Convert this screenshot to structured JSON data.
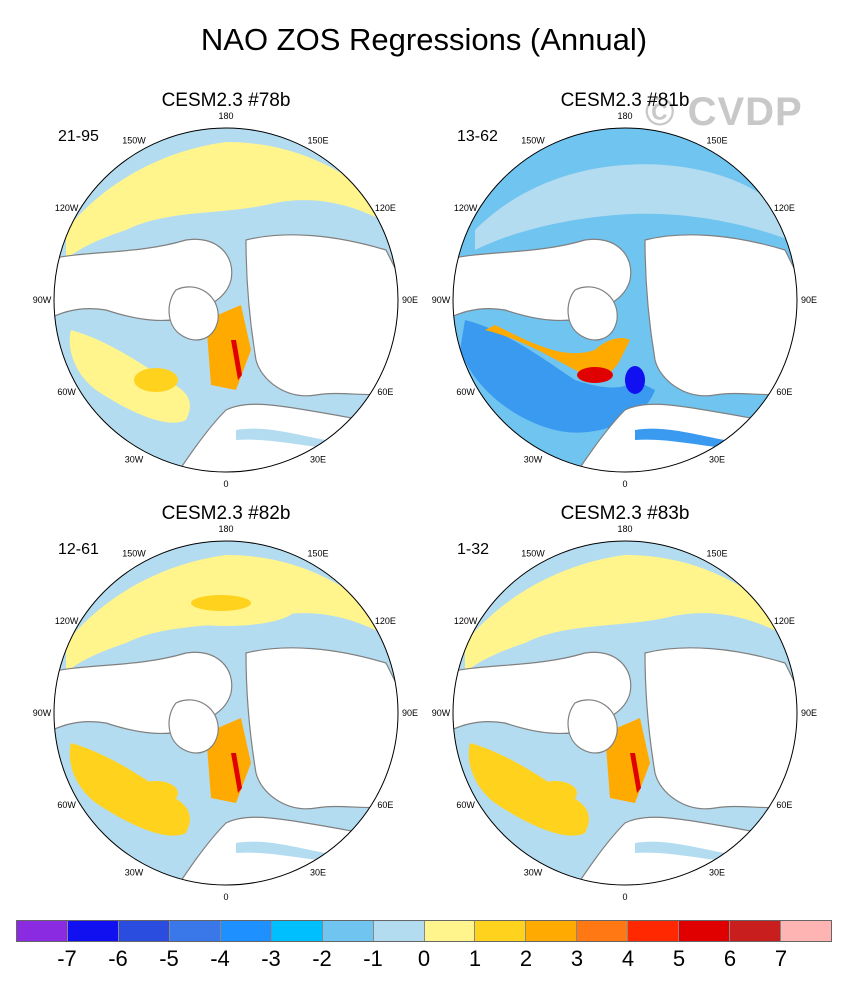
{
  "title": "NAO ZOS Regressions (Annual)",
  "watermark": "© CVDP",
  "panels": [
    {
      "title": "CESM2.3 #78b",
      "years": "21-95",
      "pattern": "weak"
    },
    {
      "title": "CESM2.3 #81b",
      "years": "13-62",
      "pattern": "strong"
    },
    {
      "title": "CESM2.3 #82b",
      "years": "12-61",
      "pattern": "mixed"
    },
    {
      "title": "CESM2.3 #83b",
      "years": "1-32",
      "pattern": "mixed2"
    }
  ],
  "lon_labels": [
    "180",
    "150E",
    "120E",
    "90E",
    "60E",
    "30E",
    "0",
    "30W",
    "60W",
    "90W",
    "120W",
    "150W"
  ],
  "colorbar": {
    "colors": [
      "#8a2be2",
      "#1010f0",
      "#2a4de0",
      "#3a78ea",
      "#1e90ff",
      "#00bfff",
      "#70c4f0",
      "#b4dcf0",
      "#fff58c",
      "#ffd21e",
      "#ffaa00",
      "#ff7814",
      "#ff2800",
      "#e10000",
      "#c81e1e",
      "#ffb4b4"
    ],
    "labels": [
      "-7",
      "-6",
      "-5",
      "-4",
      "-3",
      "-2",
      "-1",
      "0",
      "1",
      "2",
      "3",
      "4",
      "5",
      "6",
      "7"
    ]
  },
  "colors": {
    "land": "#ffffff",
    "coast": "#808080",
    "light_blue": "#b4dcf0",
    "mid_blue": "#70c4f0",
    "blue": "#3a9af0",
    "yellow": "#fff58c",
    "gold": "#ffd21e",
    "orange": "#ffaa00",
    "red": "#e10000"
  }
}
